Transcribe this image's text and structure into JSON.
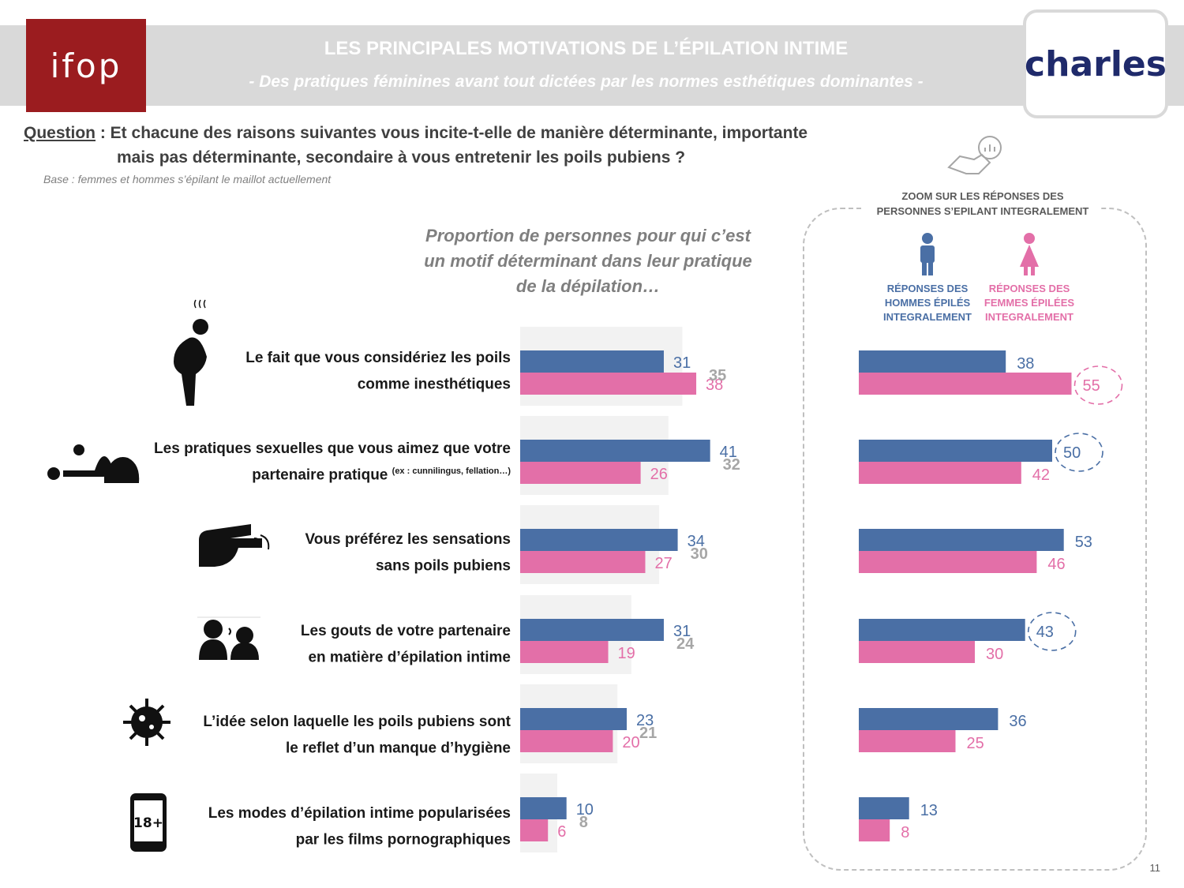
{
  "header": {
    "title": "LES PRINCIPALES MOTIVATIONS DE L’ÉPILATION INTIME",
    "subtitle": "- Des pratiques féminines avant tout dictées par les normes esthétiques dominantes -",
    "logo_left": "ifop",
    "logo_right": "charles"
  },
  "question": {
    "label": "Question",
    "line1": " : Et chacune des raisons suivantes vous incite-t-elle de manière déterminante, importante",
    "line2": "mais pas déterminante, secondaire à vous entretenir les poils pubiens ?",
    "base": "Base : femmes et hommes s’épilant le maillot actuellement"
  },
  "proportion_title": {
    "line1": "Proportion de personnes pour qui c’est",
    "line2": "un motif déterminant dans leur pratique",
    "line3": "de la dépilation…"
  },
  "zoom": {
    "title_line1": "ZOOM SUR LES RÉPONSES DES",
    "title_line2": "PERSONNES S’EPILANT INTEGRALEMENT",
    "men_head": [
      "RÉPONSES DES",
      "HOMMES ÉPILÉS",
      "INTEGRALEMENT"
    ],
    "women_head": [
      "RÉPONSES DES",
      "FEMMES ÉPILÉES",
      "INTEGRALEMENT"
    ]
  },
  "rows": [
    {
      "line1": "Le fait que vous considériez les poils",
      "line2": "comme inesthétiques",
      "note": "",
      "icon": "person-discomfort-icon"
    },
    {
      "line1": "Les pratiques sexuelles que vous aimez que votre",
      "line2": "partenaire pratique ",
      "note": "(ex : cunnilingus, fellation…)",
      "icon": "sexual-position-icon"
    },
    {
      "line1": "Vous préférez les sensations",
      "line2": "sans poils pubiens",
      "note": "",
      "icon": "touch-hand-icon"
    },
    {
      "line1": "Les gouts de votre partenaire",
      "line2": "en matière d’épilation intime",
      "note": "",
      "icon": "couple-talking-icon"
    },
    {
      "line1": "L’idée selon laquelle les poils pubiens sont",
      "line2": "le reflet d’un manque d’hygiène",
      "note": "",
      "icon": "germ-icon"
    },
    {
      "line1": "Les modes d’épilation intime popularisées",
      "line2": "par les films pornographiques",
      "note": "",
      "icon": "phone-18-icon"
    }
  ],
  "chart_data": [
    {
      "type": "bar",
      "title": "Proportion de personnes pour qui c’est un motif déterminant dans leur pratique de la dépilation…",
      "categories": [
        "Le fait que vous considériez les poils comme inesthétiques",
        "Les pratiques sexuelles que vous aimez que votre partenaire pratique",
        "Vous préférez les sensations sans poils pubiens",
        "Les gouts de votre partenaire en matière d’épilation intime",
        "L’idée selon laquelle les poils pubiens sont le reflet d’un manque d’hygiène",
        "Les modes d’épilation intime popularisées par les films pornographiques"
      ],
      "series": [
        {
          "values": [
            35,
            32,
            30,
            24,
            21,
            8
          ],
          "color": "#f2f2f2",
          "label_color": "#a6a6a6"
        },
        {
          "values": [
            31,
            41,
            34,
            31,
            23,
            10
          ],
          "color": "#4a6fa5",
          "label_color": "#4a6fa5"
        },
        {
          "values": [
            38,
            26,
            27,
            19,
            20,
            6
          ],
          "color": "#e36fa8",
          "label_color": "#e36fa8"
        }
      ],
      "orientation": "horizontal",
      "xlim": [
        0,
        100
      ]
    },
    {
      "type": "bar",
      "title": "ZOOM SUR LES RÉPONSES DES PERSONNES S’EPILANT INTEGRALEMENT",
      "categories": [
        "Le fait que vous considériez les poils comme inesthétiques",
        "Les pratiques sexuelles que vous aimez que votre partenaire pratique",
        "Vous préférez les sensations sans poils pubiens",
        "Les gouts de votre partenaire en matière d’épilation intime",
        "L’idée selon laquelle les poils pubiens sont le reflet d’un manque d’hygiène",
        "Les modes d’épilation intime popularisées par les films pornographiques"
      ],
      "series": [
        {
          "name": "RÉPONSES DES HOMMES ÉPILÉS INTEGRALEMENT",
          "values": [
            38,
            50,
            53,
            43,
            36,
            13
          ],
          "color": "#4a6fa5"
        },
        {
          "name": "RÉPONSES DES FEMMES ÉPILÉES INTEGRALEMENT",
          "values": [
            55,
            42,
            46,
            30,
            25,
            8
          ],
          "color": "#e36fa8"
        }
      ],
      "highlighted": [
        {
          "series": 1,
          "index": 0
        },
        {
          "series": 0,
          "index": 1
        },
        {
          "series": 0,
          "index": 3
        }
      ],
      "orientation": "horizontal",
      "xlim": [
        0,
        100
      ]
    }
  ],
  "page_number": "11"
}
